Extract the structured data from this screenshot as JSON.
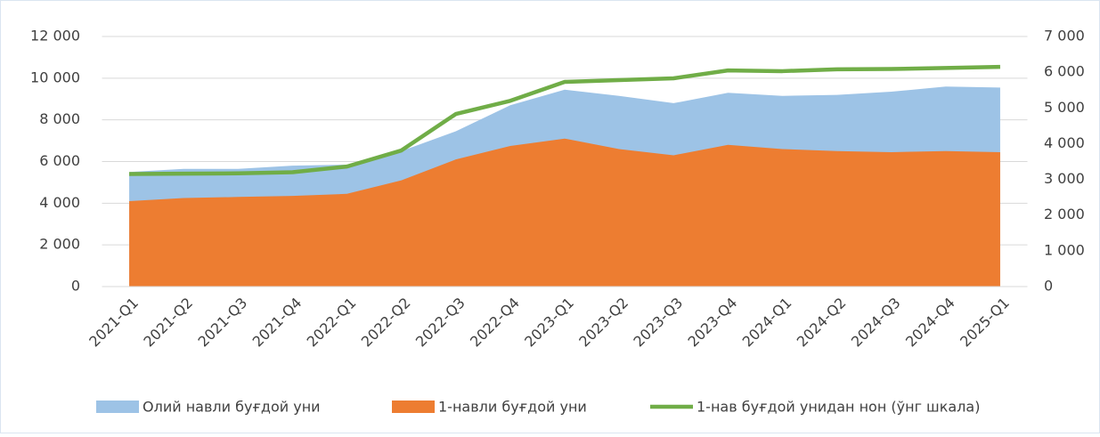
{
  "chart_data": {
    "type": "area",
    "categories": [
      "2021-Q1",
      "2021-Q2",
      "2021-Q3",
      "2021-Q4",
      "2022-Q1",
      "2022-Q2",
      "2022-Q3",
      "2022-Q4",
      "2023-Q1",
      "2023-Q2",
      "2023-Q3",
      "2023-Q4",
      "2024-Q1",
      "2024-Q2",
      "2024-Q3",
      "2024-Q4",
      "2025-Q1"
    ],
    "series": [
      {
        "name": "Олий навли буғдой уни",
        "color": "#9dc3e6",
        "type": "area",
        "values": [
          5500,
          5650,
          5650,
          5800,
          5850,
          6500,
          7450,
          8700,
          9450,
          9150,
          8800,
          9300,
          9150,
          9200,
          9350,
          9600,
          9550
        ]
      },
      {
        "name": "1-навли буғдой уни",
        "color": "#ed7d31",
        "type": "area",
        "values": [
          4100,
          4250,
          4300,
          4350,
          4450,
          5100,
          6100,
          6750,
          7100,
          6600,
          6300,
          6800,
          6600,
          6500,
          6450,
          6500,
          6450
        ]
      },
      {
        "name": "1-нав буғдой унидан нон (ўнг шкала)",
        "color": "#70ad47",
        "type": "line",
        "axis": "y2",
        "values": [
          3150,
          3160,
          3170,
          3200,
          3360,
          3810,
          4830,
          5200,
          5730,
          5780,
          5830,
          6050,
          6030,
          6080,
          6090,
          6120,
          6150
        ]
      }
    ],
    "ylim": [
      0,
      12000
    ],
    "yticks": [
      0,
      {
        "value": 2000,
        "label": "2 000"
      },
      {
        "value": 4000,
        "label": "4 000"
      },
      {
        "value": 6000,
        "label": "6 000"
      },
      {
        "value": 8000,
        "label": "8 000"
      },
      {
        "value": 10000,
        "label": "10 000"
      },
      {
        "value": 12000,
        "label": "12 000"
      }
    ],
    "y2lim": [
      0,
      7000
    ],
    "y2ticks": [
      0,
      {
        "value": 1000,
        "label": "1 000"
      },
      {
        "value": 2000,
        "label": "2 000"
      },
      {
        "value": 3000,
        "label": "3 000"
      },
      {
        "value": 4000,
        "label": "4 000"
      },
      {
        "value": 5000,
        "label": "5 000"
      },
      {
        "value": 6000,
        "label": "6 000"
      },
      {
        "value": 7000,
        "label": "7 000"
      }
    ],
    "grid": true,
    "legend": "bottom"
  }
}
